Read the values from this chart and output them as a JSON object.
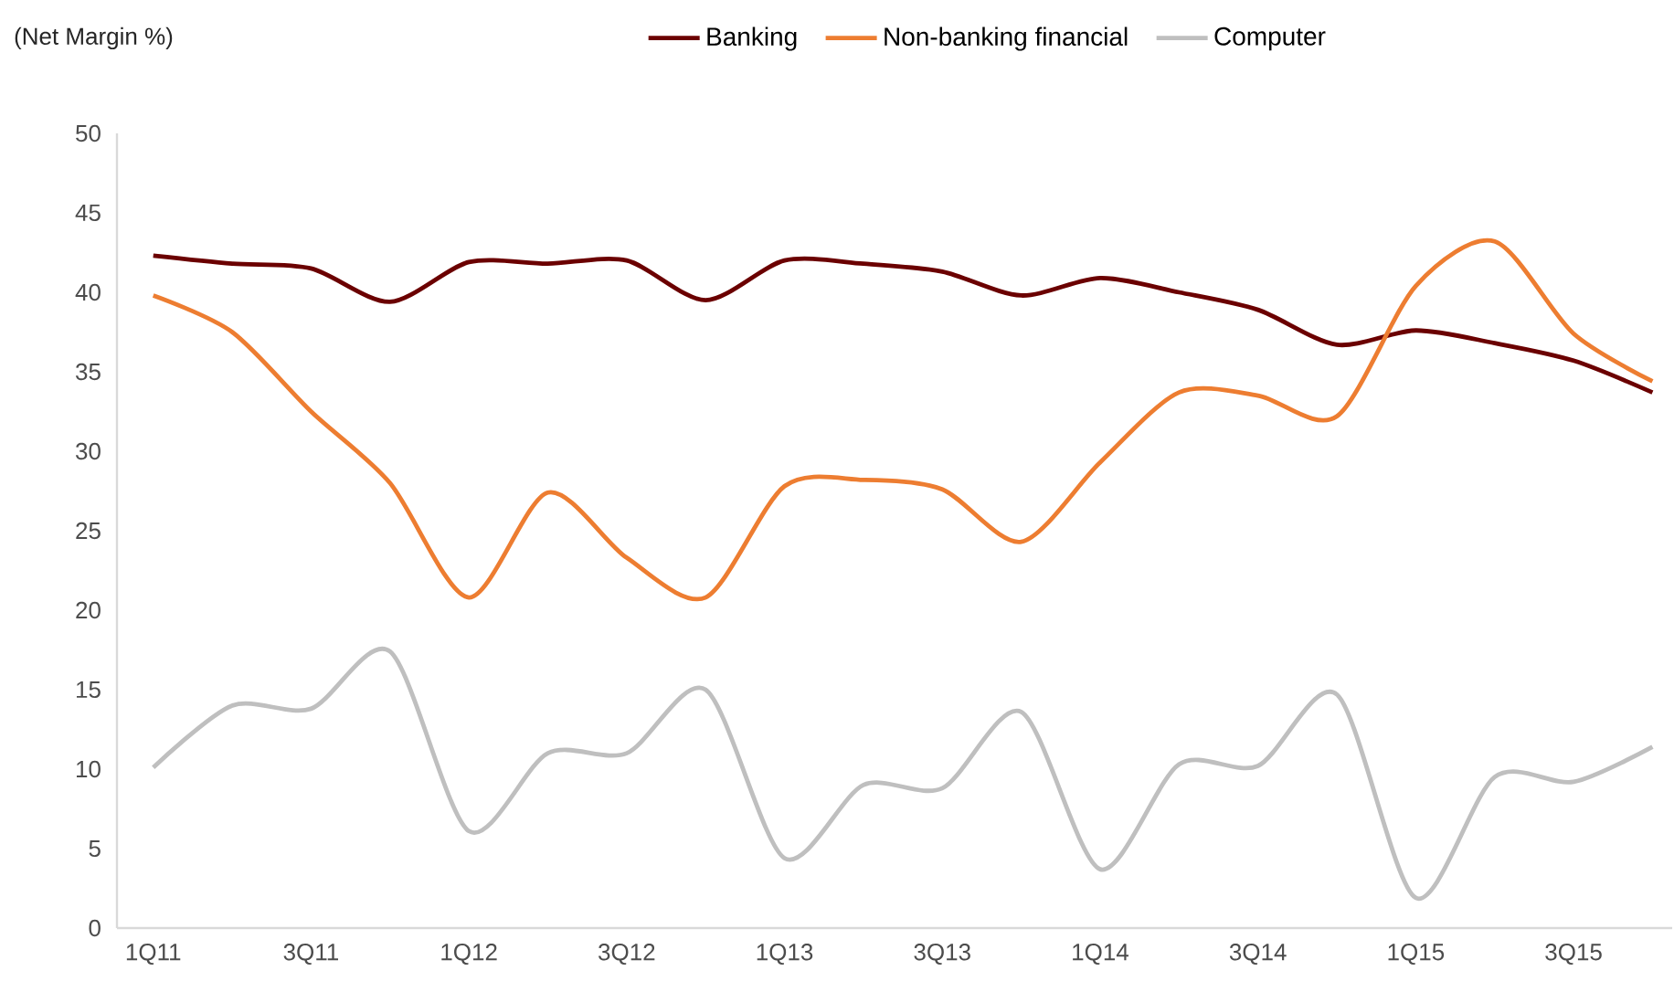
{
  "chart_data": {
    "type": "line",
    "ylabel": "(Net Margin %)",
    "legend": "top",
    "categories": [
      "1Q11",
      null,
      "3Q11",
      null,
      "1Q12",
      null,
      "3Q12",
      null,
      "1Q13",
      null,
      "3Q13",
      null,
      "1Q14",
      null,
      "3Q14",
      null,
      "1Q15",
      null,
      "3Q15",
      null
    ],
    "ylim": [
      0,
      50
    ],
    "yticks": [
      0,
      5,
      10,
      15,
      20,
      25,
      30,
      35,
      40,
      45,
      50
    ],
    "series": [
      {
        "name": "Banking",
        "color": "#6b0000",
        "values": [
          42.3,
          41.8,
          41.5,
          39.4,
          41.9,
          41.8,
          42.0,
          39.5,
          42.0,
          41.8,
          41.3,
          39.8,
          40.9,
          40.0,
          38.9,
          36.7,
          37.6,
          36.8,
          35.7,
          33.7
        ]
      },
      {
        "name": "Non-banking financial",
        "color": "#ed7d31",
        "values": [
          39.8,
          37.5,
          32.5,
          28.0,
          20.8,
          27.4,
          23.3,
          20.8,
          27.8,
          28.2,
          27.6,
          24.3,
          29.3,
          33.7,
          33.5,
          32.2,
          40.4,
          43.2,
          37.4,
          34.4
        ]
      },
      {
        "name": "Computer",
        "color": "#bfbfbf",
        "values": [
          10.1,
          14.0,
          13.8,
          17.4,
          6.1,
          11.0,
          11.0,
          15.0,
          4.4,
          9.0,
          8.8,
          13.6,
          3.7,
          10.3,
          10.2,
          14.7,
          1.9,
          9.5,
          9.2,
          11.4
        ]
      }
    ]
  }
}
